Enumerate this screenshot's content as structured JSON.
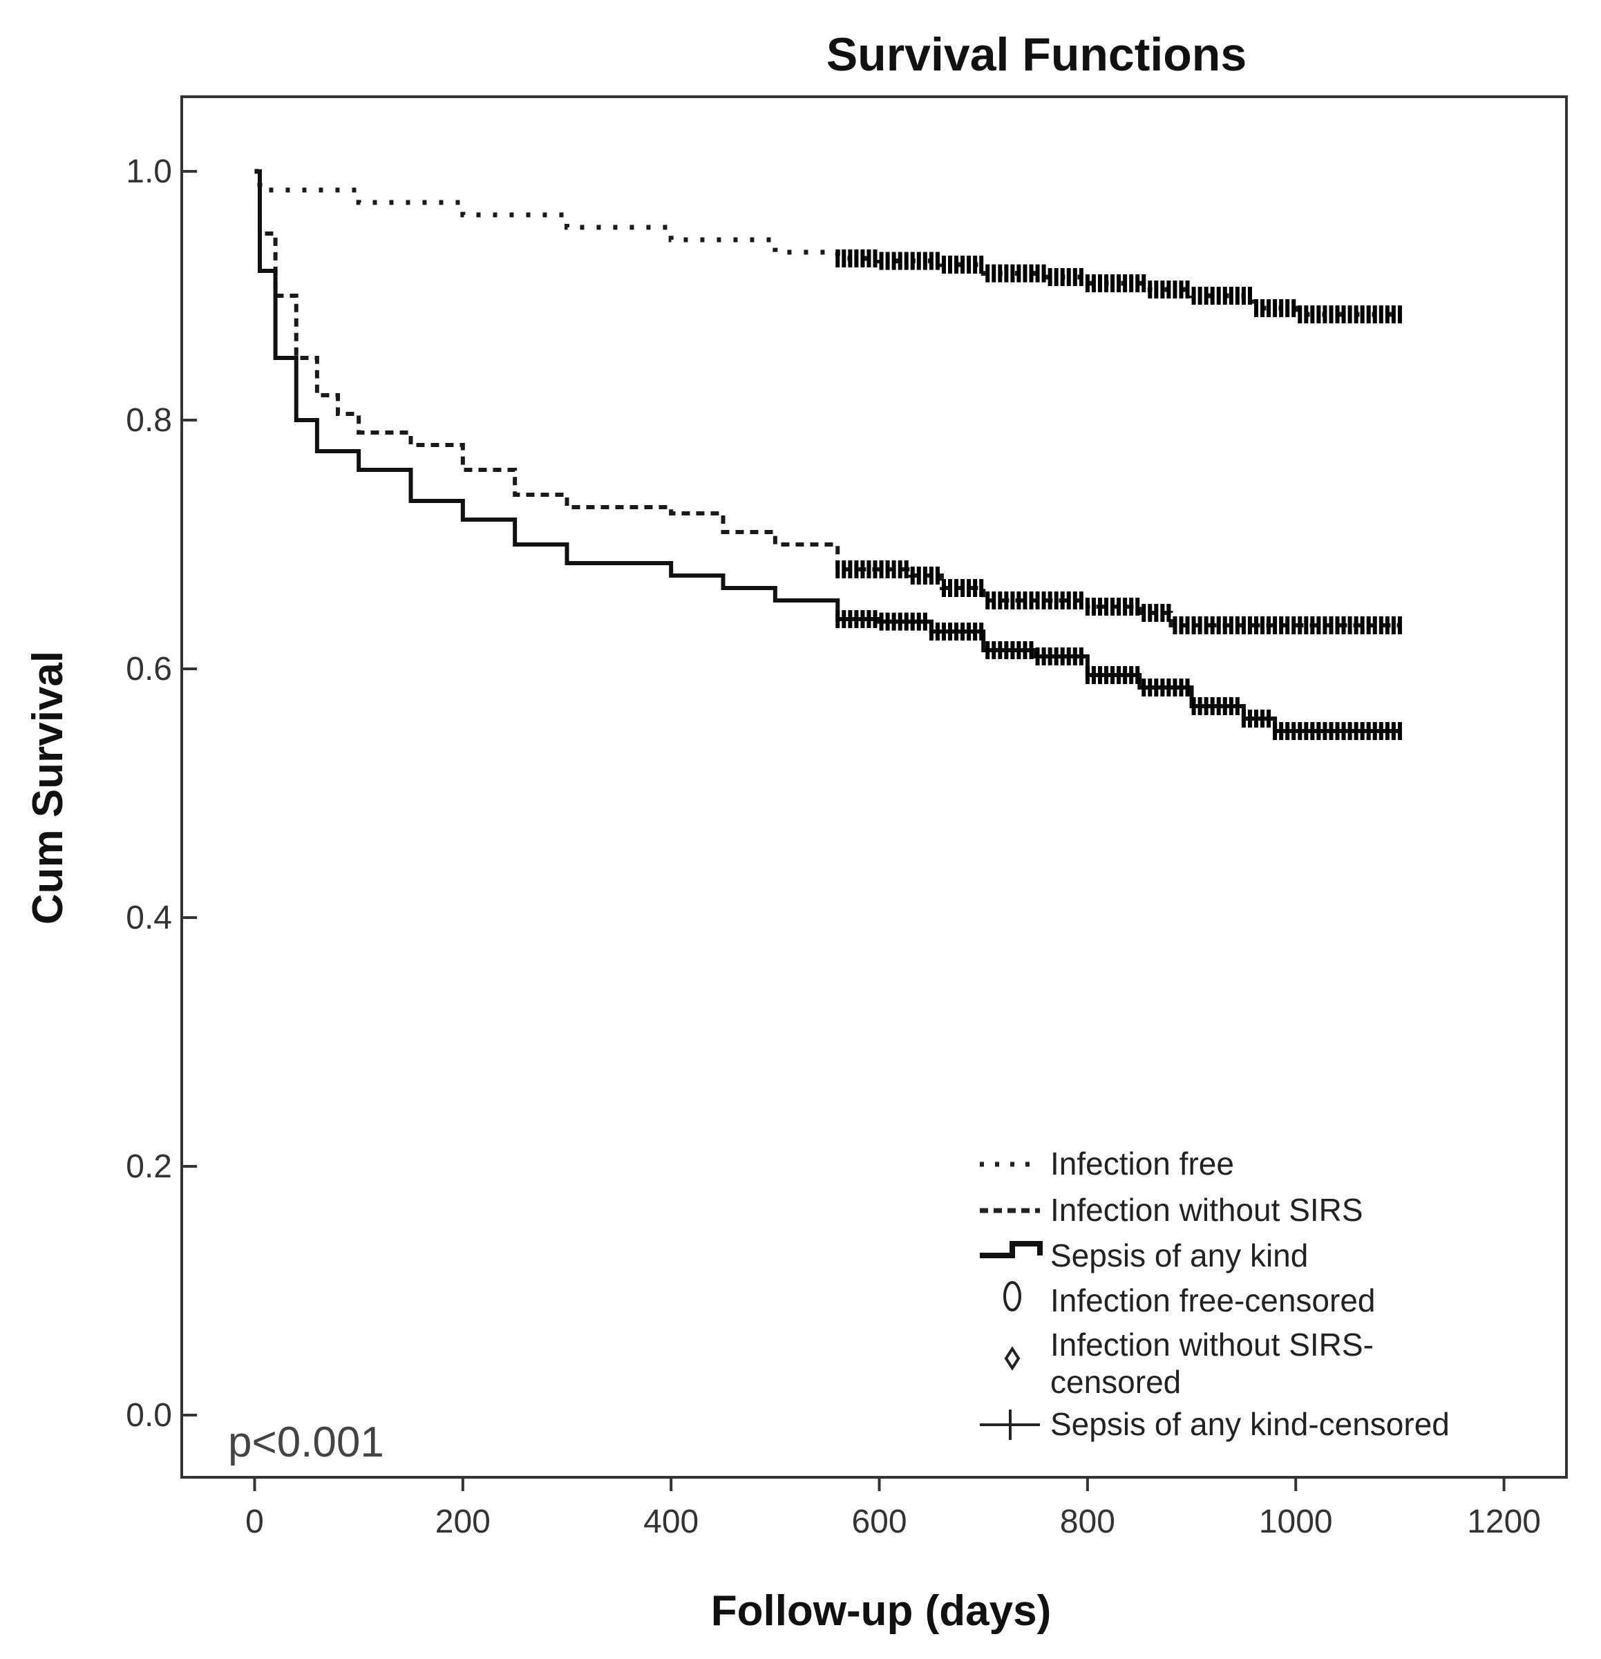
{
  "chart_data": {
    "type": "line",
    "title": "Survival Functions",
    "xlabel": "Follow-up (days)",
    "ylabel": "Cum Survival",
    "xlim": [
      -70,
      1260
    ],
    "ylim": [
      -0.05,
      1.06
    ],
    "x_ticks": [
      0,
      200,
      400,
      600,
      800,
      1000,
      1200
    ],
    "x_tick_labels": [
      "0",
      "200",
      "400",
      "600",
      "800",
      "1000",
      "1200"
    ],
    "y_ticks": [
      0.0,
      0.2,
      0.4,
      0.6,
      0.8,
      1.0
    ],
    "y_tick_labels": [
      "0.0",
      "0.2",
      "0.4",
      "0.6",
      "0.8",
      "1.0"
    ],
    "grid": false,
    "legend_position": "bottom-right",
    "annotation": "p<0.001",
    "series": [
      {
        "name": "Infection free",
        "style": "dotted",
        "points": [
          [
            0,
            1.0
          ],
          [
            5,
            0.985
          ],
          [
            100,
            0.975
          ],
          [
            200,
            0.965
          ],
          [
            300,
            0.955
          ],
          [
            400,
            0.945
          ],
          [
            500,
            0.935
          ],
          [
            560,
            0.93
          ],
          [
            600,
            0.928
          ],
          [
            660,
            0.925
          ],
          [
            700,
            0.918
          ],
          [
            760,
            0.915
          ],
          [
            800,
            0.91
          ],
          [
            860,
            0.905
          ],
          [
            900,
            0.9
          ],
          [
            960,
            0.89
          ],
          [
            1000,
            0.885
          ],
          [
            1100,
            0.885
          ]
        ],
        "censor_range": [
          560,
          1100
        ]
      },
      {
        "name": "Infection without SIRS",
        "style": "dashed",
        "points": [
          [
            0,
            1.0
          ],
          [
            5,
            0.95
          ],
          [
            20,
            0.9
          ],
          [
            40,
            0.85
          ],
          [
            60,
            0.82
          ],
          [
            80,
            0.805
          ],
          [
            100,
            0.79
          ],
          [
            150,
            0.78
          ],
          [
            200,
            0.76
          ],
          [
            250,
            0.74
          ],
          [
            300,
            0.73
          ],
          [
            400,
            0.725
          ],
          [
            450,
            0.71
          ],
          [
            500,
            0.7
          ],
          [
            560,
            0.68
          ],
          [
            630,
            0.675
          ],
          [
            660,
            0.665
          ],
          [
            700,
            0.655
          ],
          [
            800,
            0.65
          ],
          [
            850,
            0.645
          ],
          [
            880,
            0.635
          ],
          [
            1000,
            0.635
          ],
          [
            1100,
            0.635
          ]
        ],
        "censor_range": [
          560,
          1100
        ]
      },
      {
        "name": "Sepsis of any kind",
        "style": "solid",
        "points": [
          [
            0,
            1.0
          ],
          [
            5,
            0.92
          ],
          [
            20,
            0.85
          ],
          [
            40,
            0.8
          ],
          [
            60,
            0.775
          ],
          [
            100,
            0.76
          ],
          [
            150,
            0.735
          ],
          [
            200,
            0.72
          ],
          [
            250,
            0.7
          ],
          [
            300,
            0.685
          ],
          [
            400,
            0.675
          ],
          [
            450,
            0.665
          ],
          [
            500,
            0.655
          ],
          [
            560,
            0.64
          ],
          [
            600,
            0.638
          ],
          [
            650,
            0.63
          ],
          [
            700,
            0.615
          ],
          [
            750,
            0.61
          ],
          [
            800,
            0.595
          ],
          [
            850,
            0.585
          ],
          [
            900,
            0.57
          ],
          [
            950,
            0.56
          ],
          [
            980,
            0.55
          ],
          [
            1100,
            0.55
          ]
        ],
        "censor_range": [
          560,
          1100
        ]
      }
    ],
    "legend": [
      "Infection free",
      "Infection without SIRS",
      "Sepsis of any kind",
      "Infection free-censored",
      "Infection without SIRS-",
      "censored",
      "Sepsis of any kind-censored"
    ]
  }
}
